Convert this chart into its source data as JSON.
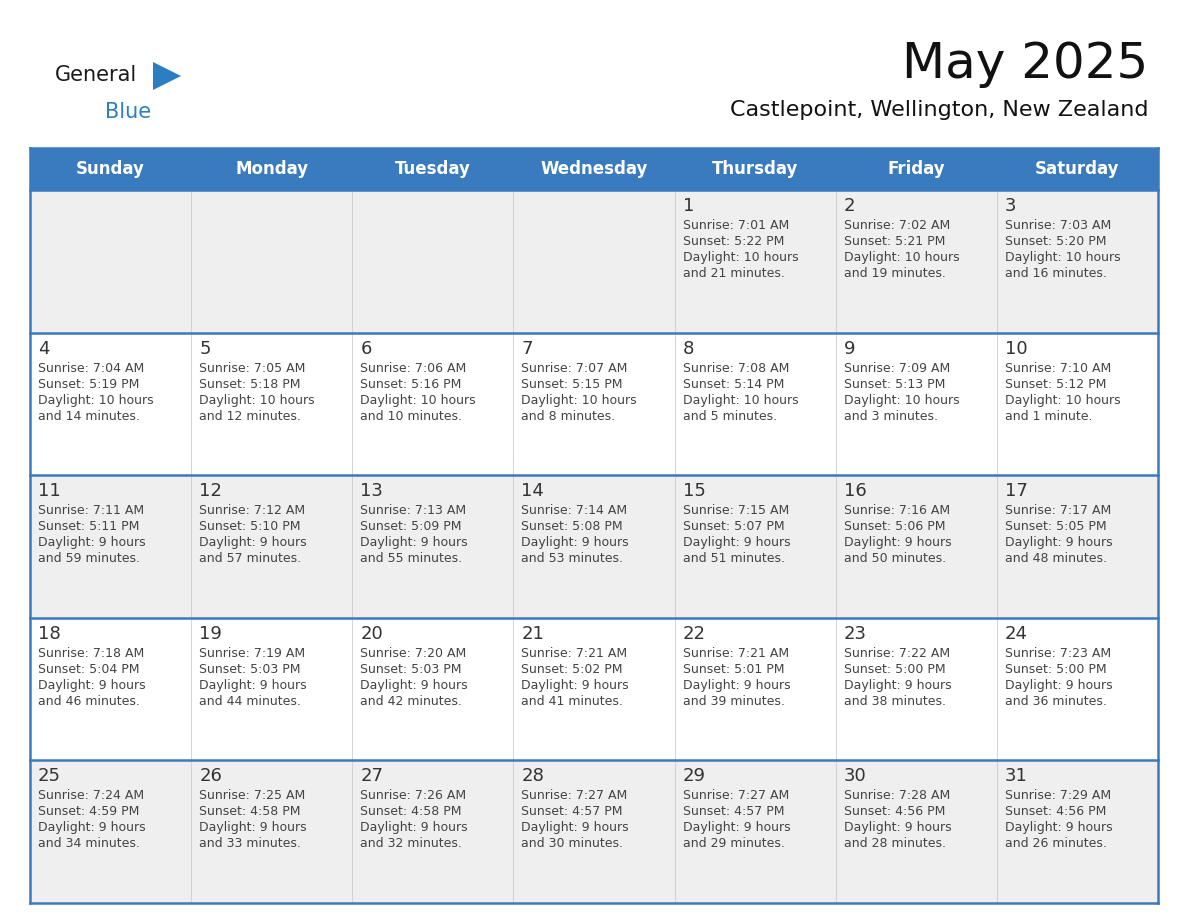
{
  "title": "May 2025",
  "subtitle": "Castlepoint, Wellington, New Zealand",
  "header_bg_color": "#3A7BBF",
  "header_text_color": "#FFFFFF",
  "days_of_week": [
    "Sunday",
    "Monday",
    "Tuesday",
    "Wednesday",
    "Thursday",
    "Friday",
    "Saturday"
  ],
  "row_colors": [
    "#EFEFEF",
    "#FFFFFF",
    "#EFEFEF",
    "#FFFFFF",
    "#EFEFEF"
  ],
  "row_separator_color": "#3A7BBF",
  "text_color": "#444444",
  "day_num_color": "#333333",
  "calendar_data": [
    [
      {
        "day": "",
        "sunrise": "",
        "sunset": "",
        "daylight": ""
      },
      {
        "day": "",
        "sunrise": "",
        "sunset": "",
        "daylight": ""
      },
      {
        "day": "",
        "sunrise": "",
        "sunset": "",
        "daylight": ""
      },
      {
        "day": "",
        "sunrise": "",
        "sunset": "",
        "daylight": ""
      },
      {
        "day": "1",
        "sunrise": "7:01 AM",
        "sunset": "5:22 PM",
        "daylight": "10 hours\nand 21 minutes."
      },
      {
        "day": "2",
        "sunrise": "7:02 AM",
        "sunset": "5:21 PM",
        "daylight": "10 hours\nand 19 minutes."
      },
      {
        "day": "3",
        "sunrise": "7:03 AM",
        "sunset": "5:20 PM",
        "daylight": "10 hours\nand 16 minutes."
      }
    ],
    [
      {
        "day": "4",
        "sunrise": "7:04 AM",
        "sunset": "5:19 PM",
        "daylight": "10 hours\nand 14 minutes."
      },
      {
        "day": "5",
        "sunrise": "7:05 AM",
        "sunset": "5:18 PM",
        "daylight": "10 hours\nand 12 minutes."
      },
      {
        "day": "6",
        "sunrise": "7:06 AM",
        "sunset": "5:16 PM",
        "daylight": "10 hours\nand 10 minutes."
      },
      {
        "day": "7",
        "sunrise": "7:07 AM",
        "sunset": "5:15 PM",
        "daylight": "10 hours\nand 8 minutes."
      },
      {
        "day": "8",
        "sunrise": "7:08 AM",
        "sunset": "5:14 PM",
        "daylight": "10 hours\nand 5 minutes."
      },
      {
        "day": "9",
        "sunrise": "7:09 AM",
        "sunset": "5:13 PM",
        "daylight": "10 hours\nand 3 minutes."
      },
      {
        "day": "10",
        "sunrise": "7:10 AM",
        "sunset": "5:12 PM",
        "daylight": "10 hours\nand 1 minute."
      }
    ],
    [
      {
        "day": "11",
        "sunrise": "7:11 AM",
        "sunset": "5:11 PM",
        "daylight": "9 hours\nand 59 minutes."
      },
      {
        "day": "12",
        "sunrise": "7:12 AM",
        "sunset": "5:10 PM",
        "daylight": "9 hours\nand 57 minutes."
      },
      {
        "day": "13",
        "sunrise": "7:13 AM",
        "sunset": "5:09 PM",
        "daylight": "9 hours\nand 55 minutes."
      },
      {
        "day": "14",
        "sunrise": "7:14 AM",
        "sunset": "5:08 PM",
        "daylight": "9 hours\nand 53 minutes."
      },
      {
        "day": "15",
        "sunrise": "7:15 AM",
        "sunset": "5:07 PM",
        "daylight": "9 hours\nand 51 minutes."
      },
      {
        "day": "16",
        "sunrise": "7:16 AM",
        "sunset": "5:06 PM",
        "daylight": "9 hours\nand 50 minutes."
      },
      {
        "day": "17",
        "sunrise": "7:17 AM",
        "sunset": "5:05 PM",
        "daylight": "9 hours\nand 48 minutes."
      }
    ],
    [
      {
        "day": "18",
        "sunrise": "7:18 AM",
        "sunset": "5:04 PM",
        "daylight": "9 hours\nand 46 minutes."
      },
      {
        "day": "19",
        "sunrise": "7:19 AM",
        "sunset": "5:03 PM",
        "daylight": "9 hours\nand 44 minutes."
      },
      {
        "day": "20",
        "sunrise": "7:20 AM",
        "sunset": "5:03 PM",
        "daylight": "9 hours\nand 42 minutes."
      },
      {
        "day": "21",
        "sunrise": "7:21 AM",
        "sunset": "5:02 PM",
        "daylight": "9 hours\nand 41 minutes."
      },
      {
        "day": "22",
        "sunrise": "7:21 AM",
        "sunset": "5:01 PM",
        "daylight": "9 hours\nand 39 minutes."
      },
      {
        "day": "23",
        "sunrise": "7:22 AM",
        "sunset": "5:00 PM",
        "daylight": "9 hours\nand 38 minutes."
      },
      {
        "day": "24",
        "sunrise": "7:23 AM",
        "sunset": "5:00 PM",
        "daylight": "9 hours\nand 36 minutes."
      }
    ],
    [
      {
        "day": "25",
        "sunrise": "7:24 AM",
        "sunset": "4:59 PM",
        "daylight": "9 hours\nand 34 minutes."
      },
      {
        "day": "26",
        "sunrise": "7:25 AM",
        "sunset": "4:58 PM",
        "daylight": "9 hours\nand 33 minutes."
      },
      {
        "day": "27",
        "sunrise": "7:26 AM",
        "sunset": "4:58 PM",
        "daylight": "9 hours\nand 32 minutes."
      },
      {
        "day": "28",
        "sunrise": "7:27 AM",
        "sunset": "4:57 PM",
        "daylight": "9 hours\nand 30 minutes."
      },
      {
        "day": "29",
        "sunrise": "7:27 AM",
        "sunset": "4:57 PM",
        "daylight": "9 hours\nand 29 minutes."
      },
      {
        "day": "30",
        "sunrise": "7:28 AM",
        "sunset": "4:56 PM",
        "daylight": "9 hours\nand 28 minutes."
      },
      {
        "day": "31",
        "sunrise": "7:29 AM",
        "sunset": "4:56 PM",
        "daylight": "9 hours\nand 26 minutes."
      }
    ]
  ],
  "logo_general_color": "#1a1a1a",
  "logo_blue_color": "#2B7EC1",
  "logo_triangle_color": "#2B7EC1",
  "title_fontsize": 36,
  "subtitle_fontsize": 16,
  "header_fontsize": 12,
  "day_num_fontsize": 13,
  "cell_text_fontsize": 9
}
